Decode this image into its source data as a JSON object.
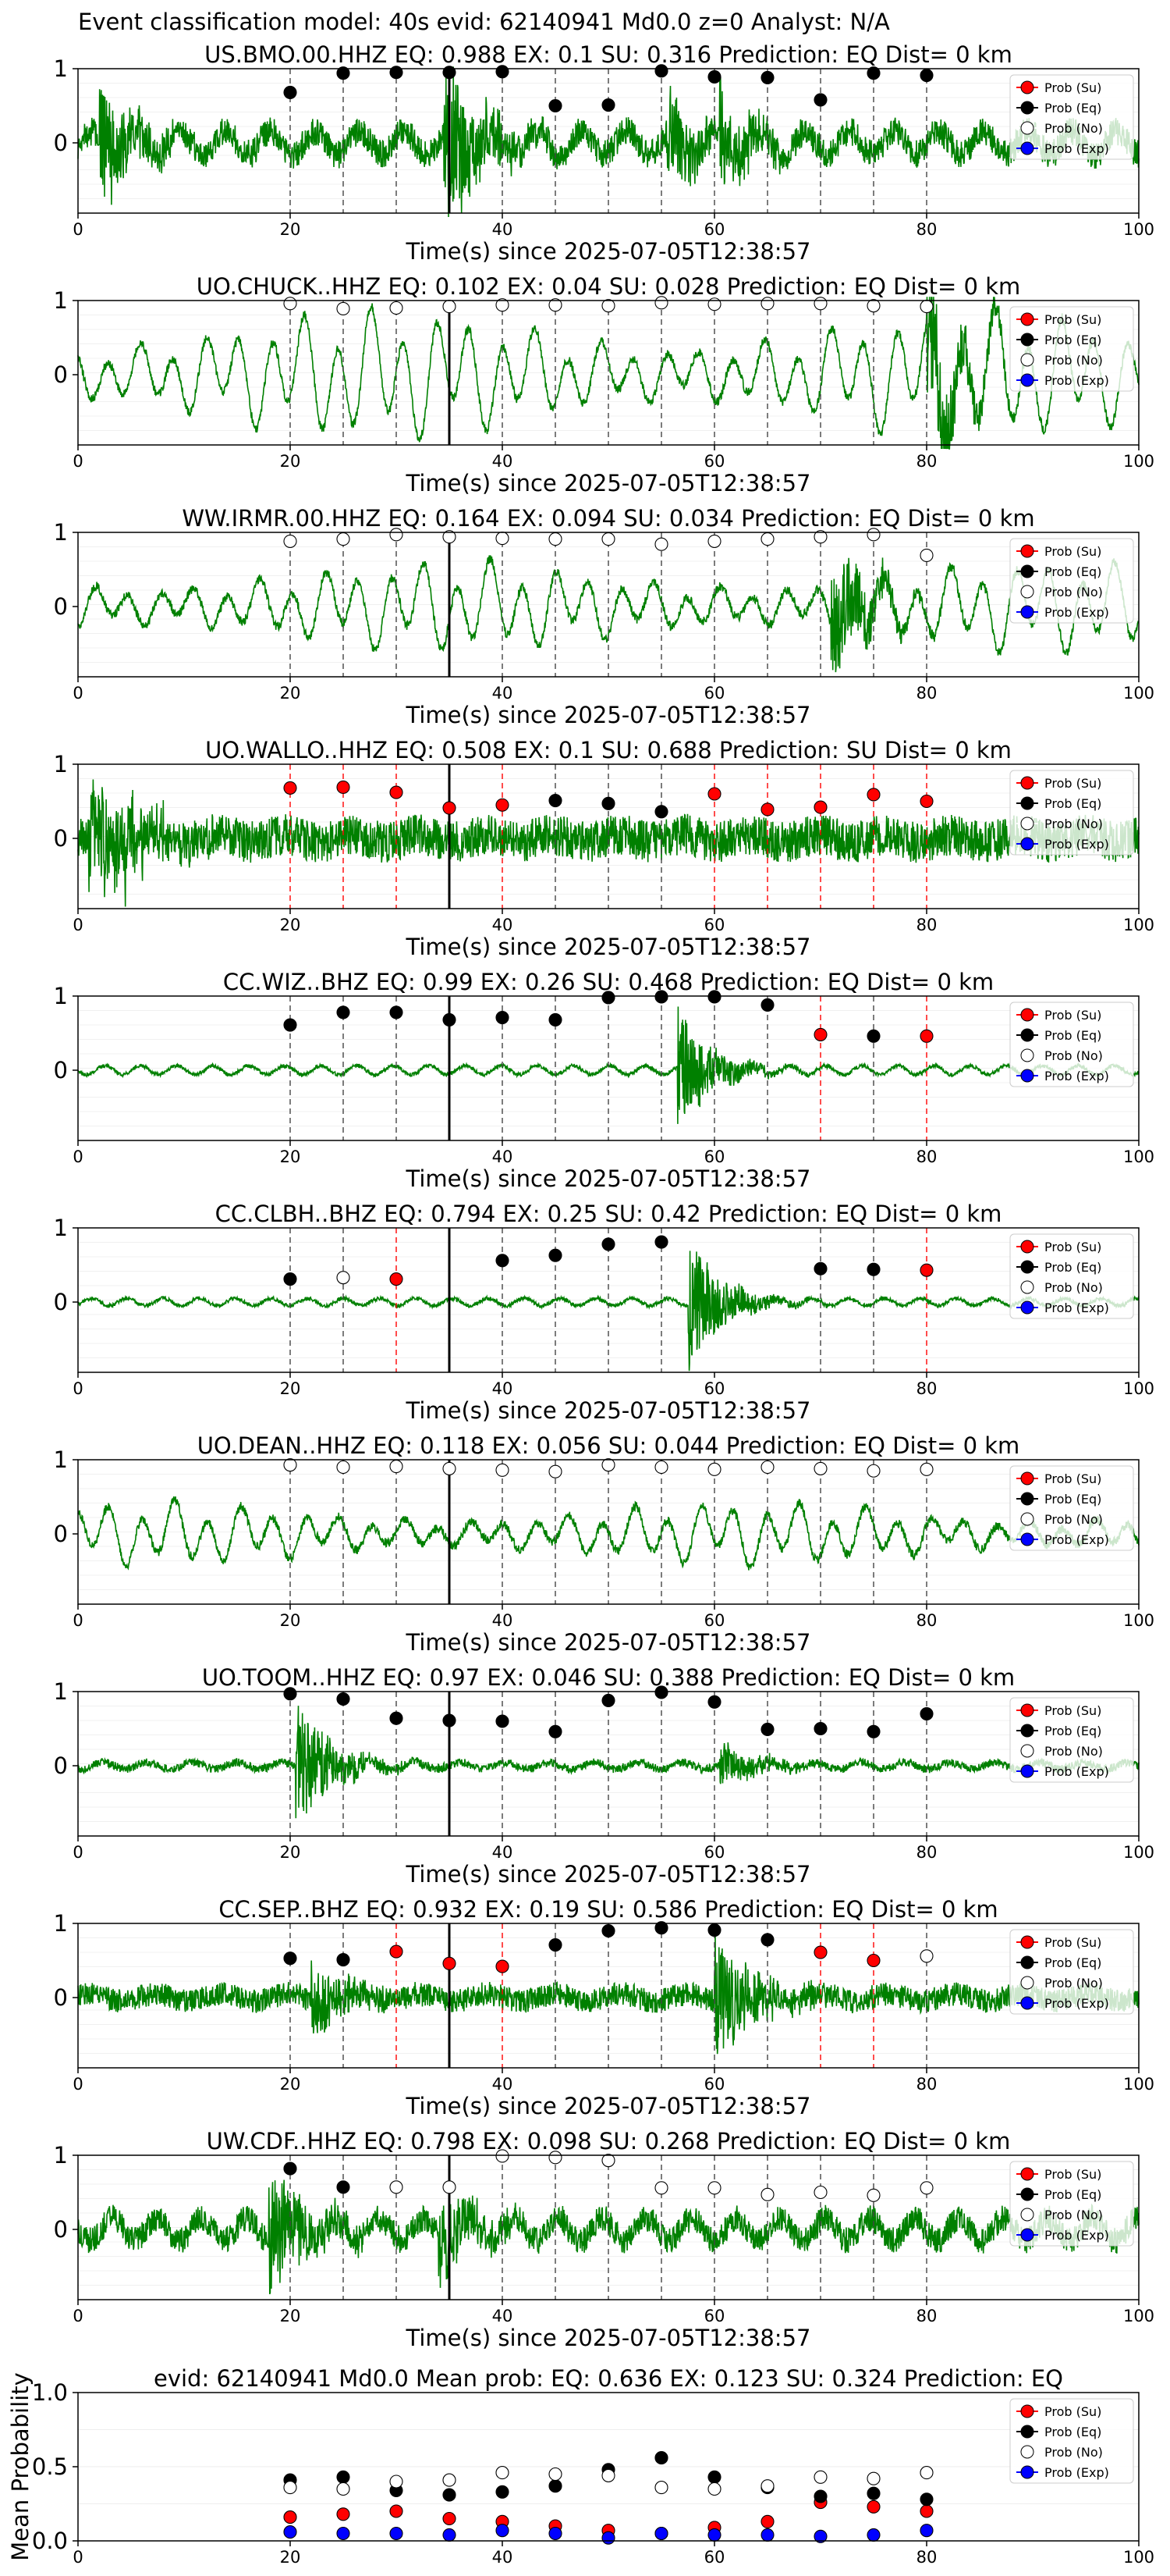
{
  "suptitle": "Event classification model: 40s evid: 62140941 Md0.0 z=0 Analyst: N/A",
  "legend_labels": [
    "Prob (Su)",
    "Prob (Eq)",
    "Prob (No)",
    "Prob (Exp)"
  ],
  "colors": {
    "su": "#ff0000",
    "eq": "#000000",
    "no": "#ffffff",
    "exp": "#0000ff",
    "wave": "#008000"
  },
  "chart_data": [
    {
      "type": "line",
      "title": "US.BMO.00.HHZ   EQ: 0.988  EX: 0.1  SU: 0.316   Prediction: EQ    Dist= 0 km",
      "xlabel": "Time(s) since 2025-07-05T12:38:57",
      "xlim": [
        0,
        100
      ],
      "xticks": [
        "0",
        "20",
        "40",
        "60",
        "80",
        "100"
      ],
      "yticks": [
        "0",
        "1"
      ],
      "waveform": {
        "character": "mixed",
        "amp": 0.35,
        "events": [
          {
            "t": 2,
            "a": 0.8
          },
          {
            "t": 34.5,
            "a": 1.3
          },
          {
            "t": 55.5,
            "a": 0.6
          },
          {
            "t": 60.5,
            "a": 0.6
          }
        ]
      },
      "points": [
        {
          "t": 20,
          "p": 0.68,
          "c": "eq"
        },
        {
          "t": 25,
          "p": 0.94,
          "c": "eq"
        },
        {
          "t": 30,
          "p": 0.95,
          "c": "eq"
        },
        {
          "t": 35,
          "p": 0.95,
          "c": "eq"
        },
        {
          "t": 40,
          "p": 0.96,
          "c": "eq"
        },
        {
          "t": 45,
          "p": 0.5,
          "c": "eq"
        },
        {
          "t": 50,
          "p": 0.51,
          "c": "eq"
        },
        {
          "t": 55,
          "p": 0.97,
          "c": "eq"
        },
        {
          "t": 60,
          "p": 0.89,
          "c": "eq"
        },
        {
          "t": 65,
          "p": 0.88,
          "c": "eq"
        },
        {
          "t": 70,
          "p": 0.58,
          "c": "eq"
        },
        {
          "t": 75,
          "p": 0.94,
          "c": "eq"
        },
        {
          "t": 80,
          "p": 0.91,
          "c": "eq"
        }
      ]
    },
    {
      "type": "line",
      "title": "UO.CHUCK..HHZ   EQ: 0.102  EX: 0.04  SU: 0.028   Prediction: EQ    Dist= 0 km",
      "xlabel": "Time(s) since 2025-07-05T12:38:57",
      "xlim": [
        0,
        100
      ],
      "xticks": [
        "0",
        "20",
        "40",
        "60",
        "80",
        "100"
      ],
      "yticks": [
        "0",
        "1"
      ],
      "waveform": {
        "character": "lowfreq",
        "amp": 0.85,
        "events": [
          {
            "t": 80,
            "a": 1.1
          }
        ]
      },
      "points": [
        {
          "t": 20,
          "p": 0.96,
          "c": "no"
        },
        {
          "t": 25,
          "p": 0.89,
          "c": "no"
        },
        {
          "t": 30,
          "p": 0.9,
          "c": "no"
        },
        {
          "t": 35,
          "p": 0.92,
          "c": "no"
        },
        {
          "t": 40,
          "p": 0.94,
          "c": "no"
        },
        {
          "t": 45,
          "p": 0.94,
          "c": "no"
        },
        {
          "t": 50,
          "p": 0.93,
          "c": "no"
        },
        {
          "t": 55,
          "p": 0.97,
          "c": "no"
        },
        {
          "t": 60,
          "p": 0.95,
          "c": "no"
        },
        {
          "t": 65,
          "p": 0.96,
          "c": "no"
        },
        {
          "t": 70,
          "p": 0.96,
          "c": "no"
        },
        {
          "t": 75,
          "p": 0.93,
          "c": "no"
        },
        {
          "t": 80,
          "p": 0.92,
          "c": "no"
        }
      ]
    },
    {
      "type": "line",
      "title": "WW.IRMR.00.HHZ   EQ: 0.164  EX: 0.094  SU: 0.034   Prediction: EQ    Dist= 0 km",
      "xlabel": "Time(s) since 2025-07-05T12:38:57",
      "xlim": [
        0,
        100
      ],
      "xticks": [
        "0",
        "20",
        "40",
        "60",
        "80",
        "100"
      ],
      "yticks": [
        "0",
        "1"
      ],
      "waveform": {
        "character": "lowfreq",
        "amp": 0.6,
        "events": [
          {
            "t": 71,
            "a": 1.0
          }
        ]
      },
      "points": [
        {
          "t": 20,
          "p": 0.88,
          "c": "no"
        },
        {
          "t": 25,
          "p": 0.91,
          "c": "no"
        },
        {
          "t": 30,
          "p": 0.97,
          "c": "no"
        },
        {
          "t": 35,
          "p": 0.94,
          "c": "no"
        },
        {
          "t": 40,
          "p": 0.92,
          "c": "no"
        },
        {
          "t": 45,
          "p": 0.91,
          "c": "no"
        },
        {
          "t": 50,
          "p": 0.91,
          "c": "no"
        },
        {
          "t": 55,
          "p": 0.84,
          "c": "no"
        },
        {
          "t": 60,
          "p": 0.88,
          "c": "no"
        },
        {
          "t": 65,
          "p": 0.91,
          "c": "no"
        },
        {
          "t": 70,
          "p": 0.94,
          "c": "no"
        },
        {
          "t": 75,
          "p": 0.97,
          "c": "no"
        },
        {
          "t": 80,
          "p": 0.69,
          "c": "no"
        }
      ]
    },
    {
      "type": "line",
      "title": "UO.WALLO..HHZ   EQ: 0.508  EX: 0.1  SU: 0.688   Prediction: SU    Dist= 0 km",
      "xlabel": "Time(s) since 2025-07-05T12:38:57",
      "xlim": [
        0,
        100
      ],
      "xticks": [
        "0",
        "20",
        "40",
        "60",
        "80",
        "100"
      ],
      "yticks": [
        "0",
        "1"
      ],
      "waveform": {
        "character": "noisy",
        "amp": 0.28,
        "events": [
          {
            "t": 1,
            "a": 1.0
          },
          {
            "t": 4,
            "a": 0.55
          }
        ]
      },
      "points": [
        {
          "t": 20,
          "p": 0.68,
          "c": "su"
        },
        {
          "t": 25,
          "p": 0.69,
          "c": "su"
        },
        {
          "t": 30,
          "p": 0.62,
          "c": "su"
        },
        {
          "t": 35,
          "p": 0.41,
          "c": "su"
        },
        {
          "t": 40,
          "p": 0.45,
          "c": "su"
        },
        {
          "t": 45,
          "p": 0.51,
          "c": "eq"
        },
        {
          "t": 50,
          "p": 0.47,
          "c": "eq"
        },
        {
          "t": 55,
          "p": 0.36,
          "c": "eq"
        },
        {
          "t": 60,
          "p": 0.6,
          "c": "su"
        },
        {
          "t": 65,
          "p": 0.39,
          "c": "su"
        },
        {
          "t": 70,
          "p": 0.42,
          "c": "su"
        },
        {
          "t": 75,
          "p": 0.59,
          "c": "su"
        },
        {
          "t": 80,
          "p": 0.5,
          "c": "su"
        }
      ]
    },
    {
      "type": "line",
      "title": "CC.WIZ..BHZ   EQ: 0.99  EX: 0.26  SU: 0.468   Prediction: EQ    Dist= 0 km",
      "xlabel": "Time(s) since 2025-07-05T12:38:57",
      "xlim": [
        0,
        100
      ],
      "xticks": [
        "0",
        "20",
        "40",
        "60",
        "80",
        "100"
      ],
      "yticks": [
        "0",
        "1"
      ],
      "waveform": {
        "character": "quiet",
        "amp": 0.06,
        "events": [
          {
            "t": 56.5,
            "a": 0.85
          }
        ]
      },
      "points": [
        {
          "t": 20,
          "p": 0.61,
          "c": "eq"
        },
        {
          "t": 25,
          "p": 0.78,
          "c": "eq"
        },
        {
          "t": 30,
          "p": 0.78,
          "c": "eq"
        },
        {
          "t": 35,
          "p": 0.68,
          "c": "eq"
        },
        {
          "t": 40,
          "p": 0.71,
          "c": "eq"
        },
        {
          "t": 45,
          "p": 0.68,
          "c": "eq"
        },
        {
          "t": 50,
          "p": 0.98,
          "c": "eq"
        },
        {
          "t": 55,
          "p": 0.99,
          "c": "eq"
        },
        {
          "t": 60,
          "p": 0.99,
          "c": "eq"
        },
        {
          "t": 65,
          "p": 0.88,
          "c": "eq"
        },
        {
          "t": 70,
          "p": 0.48,
          "c": "su"
        },
        {
          "t": 75,
          "p": 0.46,
          "c": "eq"
        },
        {
          "t": 80,
          "p": 0.46,
          "c": "su"
        }
      ]
    },
    {
      "type": "line",
      "title": "CC.CLBH..BHZ   EQ: 0.794  EX: 0.25  SU: 0.42   Prediction: EQ    Dist= 0 km",
      "xlabel": "Time(s) since 2025-07-05T12:38:57",
      "xlim": [
        0,
        100
      ],
      "xticks": [
        "0",
        "20",
        "40",
        "60",
        "80",
        "100"
      ],
      "yticks": [
        "0",
        "1"
      ],
      "waveform": {
        "character": "quiet",
        "amp": 0.05,
        "events": [
          {
            "t": 57.5,
            "a": 0.95
          }
        ]
      },
      "points": [
        {
          "t": 20,
          "p": 0.31,
          "c": "eq"
        },
        {
          "t": 25,
          "p": 0.33,
          "c": "no"
        },
        {
          "t": 30,
          "p": 0.31,
          "c": "su"
        },
        {
          "t": 40,
          "p": 0.56,
          "c": "eq"
        },
        {
          "t": 45,
          "p": 0.63,
          "c": "eq"
        },
        {
          "t": 50,
          "p": 0.78,
          "c": "eq"
        },
        {
          "t": 55,
          "p": 0.81,
          "c": "eq"
        },
        {
          "t": 70,
          "p": 0.45,
          "c": "eq"
        },
        {
          "t": 75,
          "p": 0.44,
          "c": "eq"
        },
        {
          "t": 80,
          "p": 0.43,
          "c": "su"
        }
      ]
    },
    {
      "type": "line",
      "title": "UO.DEAN..HHZ   EQ: 0.118  EX: 0.056  SU: 0.044   Prediction: EQ    Dist= 0 km",
      "xlabel": "Time(s) since 2025-07-05T12:38:57",
      "xlim": [
        0,
        100
      ],
      "xticks": [
        "0",
        "20",
        "40",
        "60",
        "80",
        "100"
      ],
      "yticks": [
        "0",
        "1"
      ],
      "waveform": {
        "character": "lowfreq",
        "amp": 0.42,
        "events": []
      },
      "points": [
        {
          "t": 20,
          "p": 0.93,
          "c": "no"
        },
        {
          "t": 25,
          "p": 0.9,
          "c": "no"
        },
        {
          "t": 30,
          "p": 0.91,
          "c": "no"
        },
        {
          "t": 35,
          "p": 0.88,
          "c": "no"
        },
        {
          "t": 40,
          "p": 0.86,
          "c": "no"
        },
        {
          "t": 45,
          "p": 0.84,
          "c": "no"
        },
        {
          "t": 50,
          "p": 0.93,
          "c": "no"
        },
        {
          "t": 55,
          "p": 0.9,
          "c": "no"
        },
        {
          "t": 60,
          "p": 0.87,
          "c": "no"
        },
        {
          "t": 65,
          "p": 0.9,
          "c": "no"
        },
        {
          "t": 70,
          "p": 0.88,
          "c": "no"
        },
        {
          "t": 75,
          "p": 0.85,
          "c": "no"
        },
        {
          "t": 80,
          "p": 0.87,
          "c": "no"
        }
      ]
    },
    {
      "type": "line",
      "title": "UO.TOOM..HHZ   EQ: 0.97  EX: 0.046  SU: 0.388   Prediction: EQ    Dist= 0 km",
      "xlabel": "Time(s) since 2025-07-05T12:38:57",
      "xlim": [
        0,
        100
      ],
      "xticks": [
        "0",
        "20",
        "40",
        "60",
        "80",
        "100"
      ],
      "yticks": [
        "0",
        "1"
      ],
      "waveform": {
        "character": "mixed",
        "amp": 0.1,
        "events": [
          {
            "t": 20.5,
            "a": 1.0
          },
          {
            "t": 60.5,
            "a": 0.35
          }
        ]
      },
      "points": [
        {
          "t": 20,
          "p": 0.97,
          "c": "eq"
        },
        {
          "t": 25,
          "p": 0.9,
          "c": "eq"
        },
        {
          "t": 30,
          "p": 0.64,
          "c": "eq"
        },
        {
          "t": 35,
          "p": 0.61,
          "c": "eq"
        },
        {
          "t": 40,
          "p": 0.6,
          "c": "eq"
        },
        {
          "t": 45,
          "p": 0.46,
          "c": "eq"
        },
        {
          "t": 50,
          "p": 0.88,
          "c": "eq"
        },
        {
          "t": 55,
          "p": 0.99,
          "c": "eq"
        },
        {
          "t": 60,
          "p": 0.86,
          "c": "eq"
        },
        {
          "t": 65,
          "p": 0.49,
          "c": "eq"
        },
        {
          "t": 70,
          "p": 0.5,
          "c": "eq"
        },
        {
          "t": 75,
          "p": 0.46,
          "c": "eq"
        },
        {
          "t": 80,
          "p": 0.7,
          "c": "eq"
        }
      ]
    },
    {
      "type": "line",
      "title": "CC.SEP..BHZ   EQ: 0.932  EX: 0.19  SU: 0.586   Prediction: EQ    Dist= 0 km",
      "xlabel": "Time(s) since 2025-07-05T12:38:57",
      "xlim": [
        0,
        100
      ],
      "xticks": [
        "0",
        "20",
        "40",
        "60",
        "80",
        "100"
      ],
      "yticks": [
        "0",
        "1"
      ],
      "waveform": {
        "character": "noisy",
        "amp": 0.16,
        "events": [
          {
            "t": 22,
            "a": 0.45
          },
          {
            "t": 60,
            "a": 1.0
          }
        ]
      },
      "points": [
        {
          "t": 20,
          "p": 0.53,
          "c": "eq"
        },
        {
          "t": 25,
          "p": 0.51,
          "c": "eq"
        },
        {
          "t": 30,
          "p": 0.62,
          "c": "su"
        },
        {
          "t": 35,
          "p": 0.46,
          "c": "su"
        },
        {
          "t": 40,
          "p": 0.42,
          "c": "su"
        },
        {
          "t": 45,
          "p": 0.71,
          "c": "eq"
        },
        {
          "t": 50,
          "p": 0.9,
          "c": "eq"
        },
        {
          "t": 55,
          "p": 0.94,
          "c": "eq"
        },
        {
          "t": 60,
          "p": 0.91,
          "c": "eq"
        },
        {
          "t": 65,
          "p": 0.78,
          "c": "eq"
        },
        {
          "t": 70,
          "p": 0.61,
          "c": "su"
        },
        {
          "t": 75,
          "p": 0.5,
          "c": "su"
        },
        {
          "t": 80,
          "p": 0.56,
          "c": "no"
        }
      ]
    },
    {
      "type": "line",
      "title": "UW.CDF..HHZ   EQ: 0.798  EX: 0.098  SU: 0.268   Prediction: EQ    Dist= 0 km",
      "xlabel": "Time(s) since 2025-07-05T12:38:57",
      "xlim": [
        0,
        100
      ],
      "xticks": [
        "0",
        "20",
        "40",
        "60",
        "80",
        "100"
      ],
      "yticks": [
        "0",
        "1"
      ],
      "waveform": {
        "character": "mixed",
        "amp": 0.33,
        "events": [
          {
            "t": 18,
            "a": 0.9
          },
          {
            "t": 34,
            "a": 0.7
          }
        ]
      },
      "points": [
        {
          "t": 20,
          "p": 0.82,
          "c": "eq"
        },
        {
          "t": 25,
          "p": 0.57,
          "c": "eq"
        },
        {
          "t": 30,
          "p": 0.57,
          "c": "no"
        },
        {
          "t": 35,
          "p": 0.57,
          "c": "no"
        },
        {
          "t": 40,
          "p": 0.99,
          "c": "no"
        },
        {
          "t": 45,
          "p": 0.97,
          "c": "no"
        },
        {
          "t": 50,
          "p": 0.93,
          "c": "no"
        },
        {
          "t": 55,
          "p": 0.56,
          "c": "no"
        },
        {
          "t": 60,
          "p": 0.56,
          "c": "no"
        },
        {
          "t": 65,
          "p": 0.47,
          "c": "no"
        },
        {
          "t": 70,
          "p": 0.5,
          "c": "no"
        },
        {
          "t": 75,
          "p": 0.46,
          "c": "no"
        },
        {
          "t": 80,
          "p": 0.56,
          "c": "no"
        }
      ]
    }
  ],
  "mean_chart": {
    "type": "scatter",
    "title": "evid: 62140941  Md0.0   Mean prob:   EQ: 0.636  EX: 0.123  SU: 0.324   Prediction: EQ",
    "ylabel": "Mean Probability",
    "xlim": [
      0,
      100
    ],
    "ylim": [
      0,
      1
    ],
    "xticks": [
      "0",
      "20",
      "40",
      "60",
      "80",
      "100"
    ],
    "yticks": [
      "0.0",
      "0.5",
      "1.0"
    ],
    "x": [
      20,
      25,
      30,
      35,
      40,
      45,
      50,
      55,
      60,
      65,
      70,
      75,
      80
    ],
    "series": [
      {
        "name": "Prob (Su)",
        "color": "#ff0000",
        "values": [
          0.16,
          0.18,
          0.2,
          0.15,
          0.13,
          0.1,
          0.07,
          0.05,
          0.09,
          0.13,
          0.26,
          0.23,
          0.2
        ]
      },
      {
        "name": "Prob (Eq)",
        "color": "#000000",
        "values": [
          0.41,
          0.43,
          0.34,
          0.31,
          0.33,
          0.37,
          0.48,
          0.56,
          0.43,
          0.36,
          0.3,
          0.32,
          0.28
        ]
      },
      {
        "name": "Prob (No)",
        "color": "#ffffff",
        "values": [
          0.36,
          0.35,
          0.4,
          0.41,
          0.46,
          0.45,
          0.44,
          0.36,
          0.35,
          0.37,
          0.43,
          0.42,
          0.46
        ]
      },
      {
        "name": "Prob (Exp)",
        "color": "#0000ff",
        "values": [
          0.06,
          0.05,
          0.05,
          0.04,
          0.07,
          0.05,
          0.02,
          0.05,
          0.04,
          0.04,
          0.03,
          0.04,
          0.07
        ]
      }
    ]
  }
}
